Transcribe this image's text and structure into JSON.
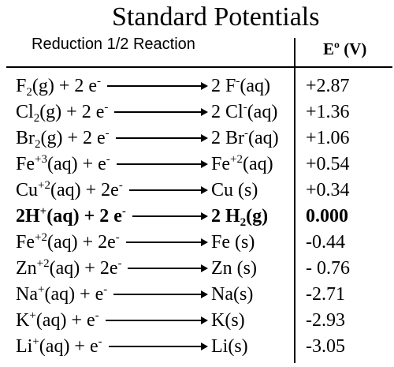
{
  "title": "Standard Potentials",
  "header": {
    "reaction_label": "Reduction 1/2 Reaction",
    "potential_label": "Eº (V)"
  },
  "rows": [
    {
      "reactant": "F<sub>2</sub>(g) + 2 e<sup>-</sup>",
      "product": "2 F<sup>-</sup>(aq)",
      "potential": "+2.87",
      "bold": false
    },
    {
      "reactant": "Cl<sub>2</sub>(g) + 2 e<sup>-</sup>",
      "product": "2 Cl<sup>-</sup>(aq)",
      "potential": "+1.36",
      "bold": false
    },
    {
      "reactant": "Br<sub>2</sub>(g) + 2 e<sup>-</sup>",
      "product": "2 Br<sup>-</sup>(aq)",
      "potential": "+1.06",
      "bold": false
    },
    {
      "reactant": "Fe<sup>+3</sup>(aq) + e<sup>-</sup>",
      "product": "Fe<sup>+2</sup>(aq)",
      "potential": "+0.54",
      "bold": false
    },
    {
      "reactant": "Cu<sup>+2</sup>(aq) + 2e<sup>-</sup>",
      "product": "Cu (s)",
      "potential": "+0.34",
      "bold": false
    },
    {
      "reactant": "2H<sup>+</sup>(aq) + 2 e<sup>-</sup>",
      "product": "2 H<sub>2</sub>(g)",
      "potential": "0.000",
      "bold": true
    },
    {
      "reactant": "Fe<sup>+2</sup>(aq) + 2e<sup>-</sup>",
      "product": "Fe (s)",
      "potential": "-0.44",
      "bold": false
    },
    {
      "reactant": "Zn<sup>+2</sup>(aq) + 2e<sup>-</sup>",
      "product": "Zn (s)",
      "potential": "- 0.76",
      "bold": false
    },
    {
      "reactant": "Na<sup>+</sup>(aq) + e<sup>-</sup>",
      "product": "Na(s)",
      "potential": "-2.71",
      "bold": false
    },
    {
      "reactant": "K<sup>+</sup>(aq) + e<sup>-</sup>",
      "product": "K(s)",
      "potential": "-2.93",
      "bold": false
    },
    {
      "reactant": "Li<sup>+</sup>(aq) + e<sup>-</sup>",
      "product": "Li(s)",
      "potential": "-3.05",
      "bold": false
    }
  ]
}
